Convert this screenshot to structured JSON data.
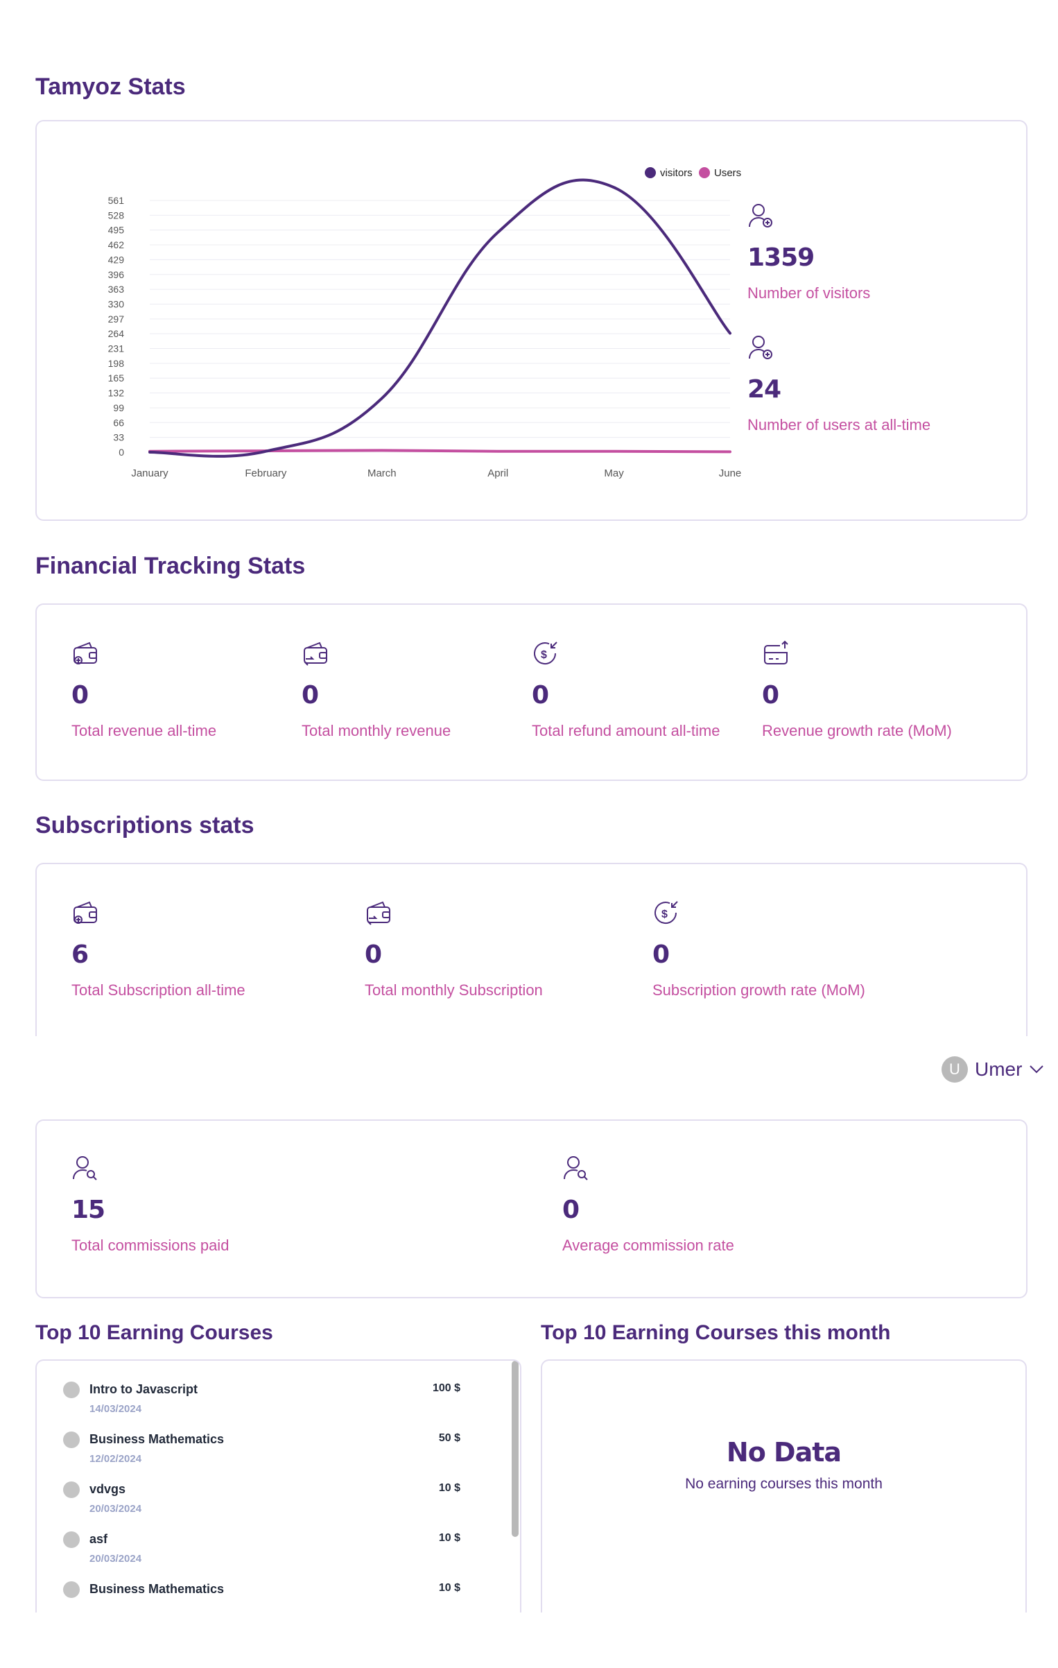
{
  "colors": {
    "primary": "#4b2a7b",
    "accent": "#c44fa0",
    "border": "#e2ddef",
    "visitors_line": "#4b2a7b",
    "users_line": "#c44fa0"
  },
  "tamyoz": {
    "title": "Tamyoz Stats",
    "visitors_value": "1359",
    "visitors_label": "Number of visitors",
    "visitors_icon": "user-plus-icon",
    "users_value": "24",
    "users_label": "Number of users at all-time",
    "users_icon": "user-plus-icon"
  },
  "chart_data": {
    "type": "line",
    "categories": [
      "January",
      "February",
      "March",
      "April",
      "May",
      "June"
    ],
    "series": [
      {
        "name": "visitors",
        "values": [
          0,
          2,
          120,
          490,
          590,
          265
        ]
      },
      {
        "name": "Users",
        "values": [
          2,
          3,
          4,
          2,
          2,
          1
        ]
      }
    ],
    "legend": [
      "visitors",
      "Users"
    ],
    "legend_position": "top-right",
    "y_ticks": [
      0,
      33,
      66,
      99,
      132,
      165,
      198,
      231,
      264,
      297,
      330,
      363,
      396,
      429,
      462,
      495,
      528,
      561
    ],
    "ylim": [
      0,
      561
    ],
    "grid": true,
    "smooth": true
  },
  "financial": {
    "title": "Financial Tracking Stats",
    "items": [
      {
        "value": "0",
        "label": "Total revenue all-time",
        "icon": "wallet-icon"
      },
      {
        "value": "0",
        "label": "Total monthly revenue",
        "icon": "wallet-exchange-icon"
      },
      {
        "value": "0",
        "label": "Total refund amount all-time",
        "icon": "dollar-refund-icon"
      },
      {
        "value": "0",
        "label": "Revenue growth rate (MoM)",
        "icon": "card-growth-icon"
      }
    ]
  },
  "subscriptions": {
    "title": "Subscriptions stats",
    "items": [
      {
        "value": "6",
        "label": "Total Subscription all-time",
        "icon": "wallet-icon"
      },
      {
        "value": "0",
        "label": "Total monthly Subscription",
        "icon": "wallet-exchange-icon"
      },
      {
        "value": "0",
        "label": "Subscription growth rate (MoM)",
        "icon": "dollar-refund-icon"
      }
    ]
  },
  "user_menu": {
    "initial": "U",
    "name": "Umer"
  },
  "commissions": {
    "items": [
      {
        "value": "15",
        "label": "Total commissions paid",
        "icon": "user-search-icon"
      },
      {
        "value": "0",
        "label": "Average commission rate",
        "icon": "user-search-icon"
      }
    ]
  },
  "top_courses": {
    "title": "Top 10 Earning Courses",
    "rows": [
      {
        "name": "Intro to Javascript",
        "amount": "100 $",
        "date": "14/03/2024"
      },
      {
        "name": "Business Mathematics",
        "amount": "50 $",
        "date": "12/02/2024"
      },
      {
        "name": "vdvgs",
        "amount": "10 $",
        "date": "20/03/2024"
      },
      {
        "name": "asf",
        "amount": "10 $",
        "date": "20/03/2024"
      },
      {
        "name": "Business Mathematics",
        "amount": "10 $",
        "date": ""
      }
    ]
  },
  "top_courses_month": {
    "title": "Top 10 Earning Courses this month",
    "empty_title": "No Data",
    "empty_subtitle": "No earning courses this month"
  }
}
